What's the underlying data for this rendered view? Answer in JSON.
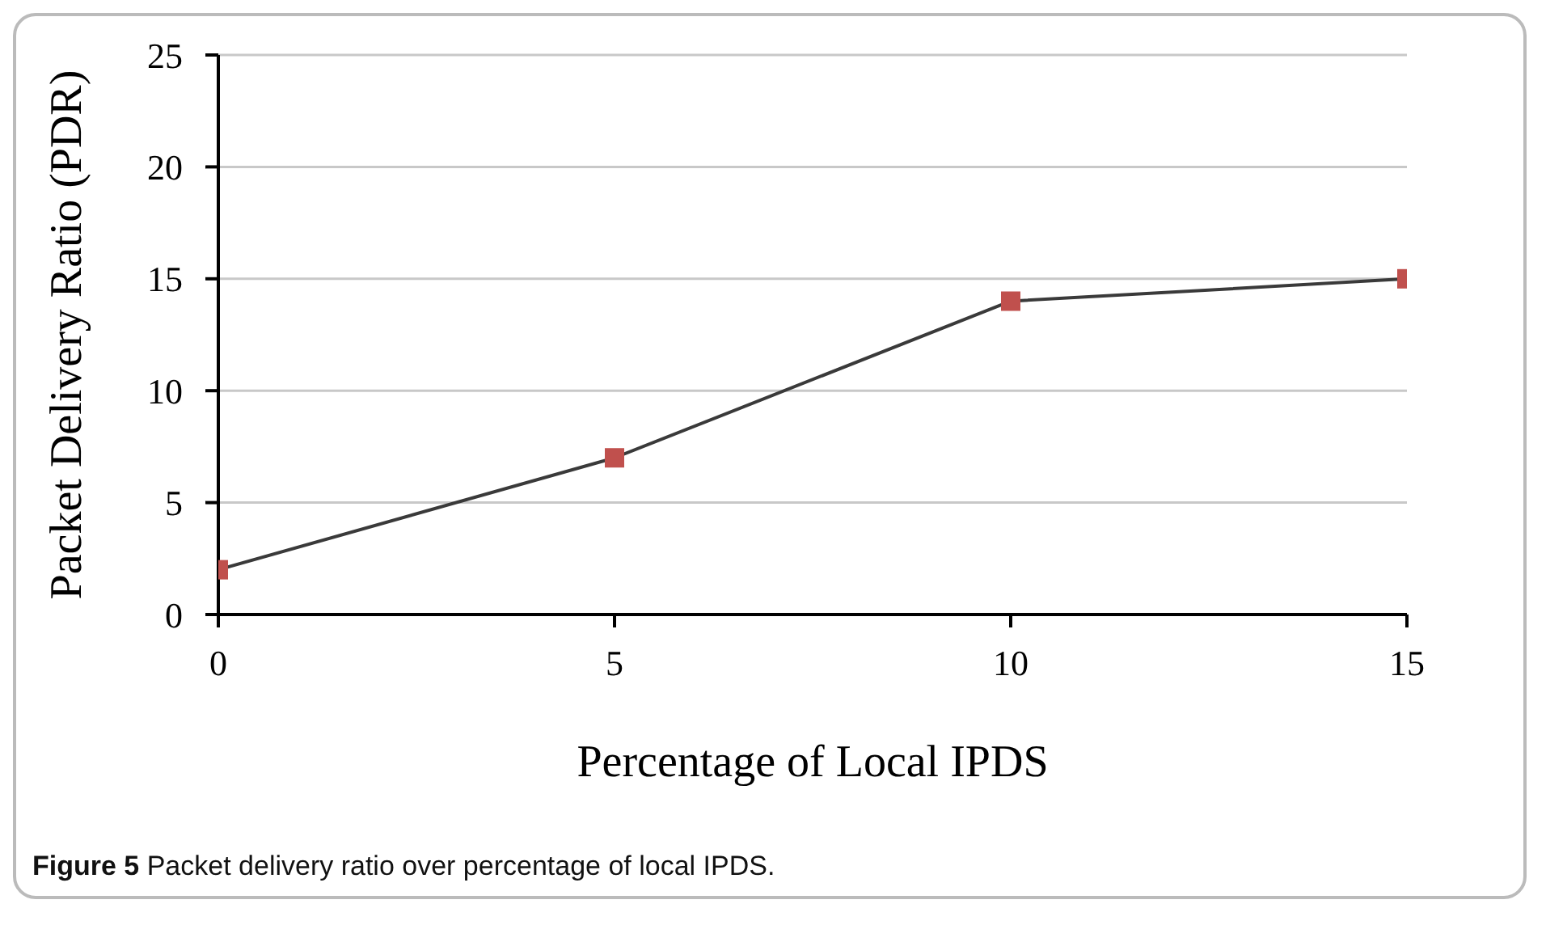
{
  "chart_data": {
    "type": "line",
    "xlabel": "Percentage of Local IPDS",
    "ylabel": "Packet Delivery Ratio (PDR)",
    "x": [
      0,
      5,
      10,
      15
    ],
    "series": [
      {
        "color": "#3a3a3a",
        "colors": [
          "#c0504d",
          "#c0504d",
          "#c0504d",
          "#c0504d"
        ],
        "values": [
          2,
          7,
          14,
          15
        ]
      }
    ],
    "xlim": [
      0,
      15
    ],
    "xticks": [
      0,
      5,
      10,
      15
    ],
    "ylim": [
      0,
      25
    ],
    "yticks": [
      0,
      5,
      10,
      15,
      20,
      25
    ],
    "grid": "y",
    "marker": "square",
    "line_style": "solid",
    "legend": false,
    "annotations": [
      "Figure 5 Packet delivery ratio over percentage of local IPDS."
    ]
  }
}
